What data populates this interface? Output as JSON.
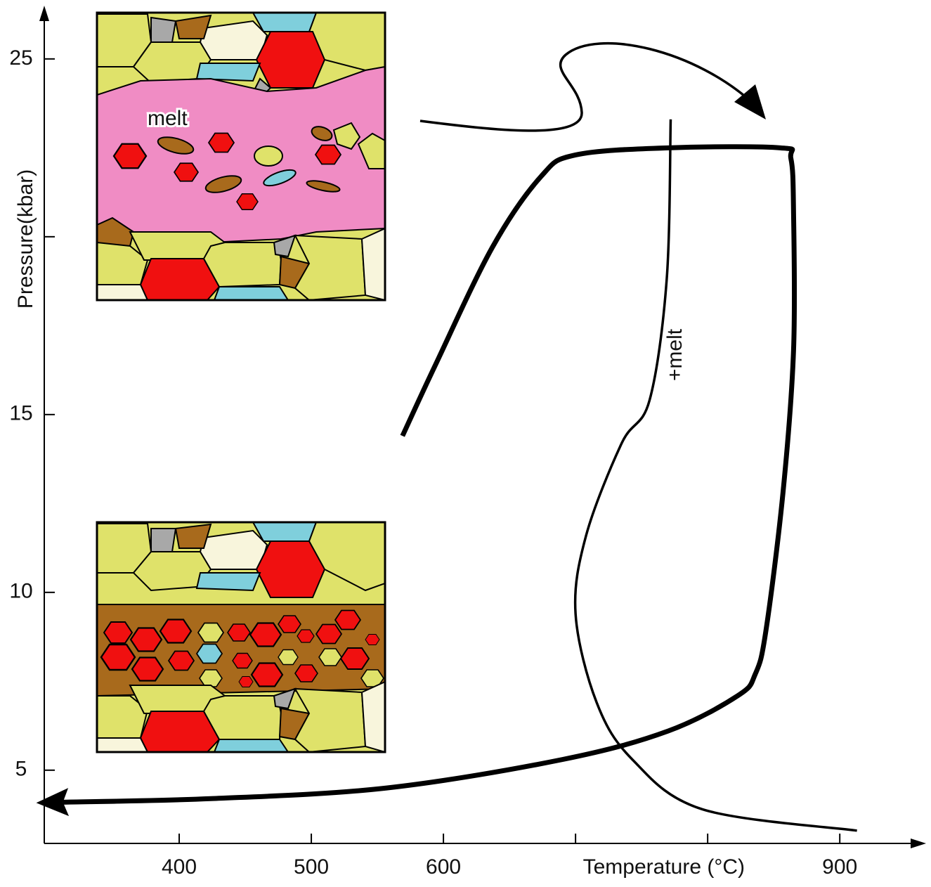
{
  "chart_data": {
    "type": "line",
    "x_label": "Temperature (°C)",
    "y_label": "Pressure(kbar)",
    "annotations": [
      "melt",
      "+melt"
    ],
    "xlim": [
      300,
      960
    ],
    "ylim": [
      3,
      26.4
    ],
    "xticks": [
      400,
      500,
      600,
      {
        "value": 700,
        "label": null
      },
      {
        "value": 800,
        "label": null
      },
      900
    ],
    "yticks": [
      5,
      10,
      15,
      {
        "value": 20,
        "label": null
      },
      25
    ],
    "series": [
      {
        "color": "#000000",
        "x": [
          569,
          594,
          637,
          674,
          700,
          770,
          855,
          863,
          865,
          865,
          857,
          844,
          836,
          823,
          770,
          690,
          557,
          424,
          312
        ],
        "values": [
          14.4,
          16.4,
          19.7,
          21.7,
          22.3,
          22.5,
          22.5,
          22.2,
          20.7,
          16.8,
          12.8,
          8.9,
          7.7,
          7.1,
          6.1,
          5.3,
          4.5,
          4.2,
          4.1
        ]
      },
      {
        "color": "#000000",
        "x": [
          772,
          769,
          756,
          735,
          708,
          700,
          716,
          743,
          796,
          913
        ],
        "values": [
          23.3,
          18.8,
          15.4,
          14.2,
          11.6,
          9.4,
          6.9,
          5.3,
          3.9,
          3.3
        ]
      }
    ]
  }
}
